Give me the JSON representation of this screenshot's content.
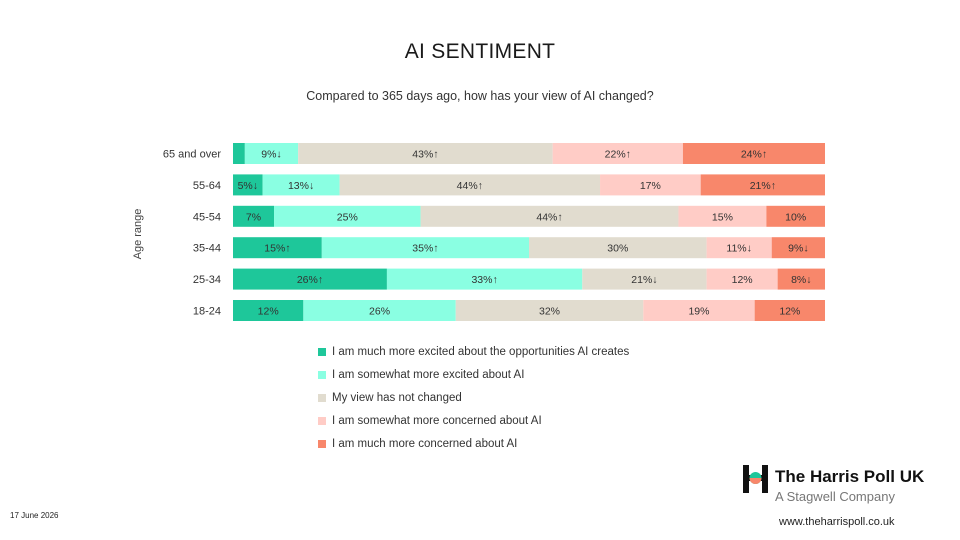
{
  "slide": {
    "date": "17 June 2026",
    "brand": "The Harris Poll UK",
    "brand_sub": "A Stagwell Company",
    "url": "www.theharrispoll.co.uk",
    "logo_icon": "harris-poll-logo-icon"
  },
  "colors": {
    "much_more_excited": "#1ec79a",
    "somewhat_more_excited": "#8affe2",
    "not_changed": "#e1dccf",
    "somewhat_more_concerned": "#ffccc6",
    "much_more_concerned": "#f8876b"
  },
  "chart_data": {
    "type": "bar",
    "orientation": "horizontal",
    "stacked": true,
    "title": "AI SENTIMENT",
    "subtitle": "Compared to 365 days ago, how has your view of AI changed?",
    "ylabel": "Age range",
    "xlim": [
      0,
      100
    ],
    "grid": false,
    "legend_position": "bottom",
    "categories": [
      "65 and over",
      "55-64",
      "45-54",
      "35-44",
      "25-34",
      "18-24"
    ],
    "series": [
      {
        "name": "I am much more excited about the opportunities AI creates",
        "values": [
          2,
          5,
          7,
          15,
          26,
          12
        ],
        "labels": [
          "",
          "5%↓",
          "7%",
          "15%↑",
          "26%↑",
          "12%"
        ]
      },
      {
        "name": "I am somewhat more excited about AI",
        "values": [
          9,
          13,
          25,
          35,
          33,
          26
        ],
        "labels": [
          "9%↓",
          "13%↓",
          "25%",
          "35%↑",
          "33%↑",
          "26%"
        ]
      },
      {
        "name": "My view has not changed",
        "values": [
          43,
          44,
          44,
          30,
          21,
          32
        ],
        "labels": [
          "43%↑",
          "44%↑",
          "44%↑",
          "30%",
          "21%↓",
          "32%"
        ]
      },
      {
        "name": "I am somewhat more concerned about AI",
        "values": [
          22,
          17,
          15,
          11,
          12,
          19
        ],
        "labels": [
          "22%↑",
          "17%",
          "15%",
          "11%↓",
          "12%",
          "19%"
        ]
      },
      {
        "name": "I am much more concerned about AI",
        "values": [
          24,
          21,
          10,
          9,
          8,
          12
        ],
        "labels": [
          "24%↑",
          "21%↑",
          "10%",
          "9%↓",
          "8%↓",
          "12%"
        ]
      }
    ]
  }
}
